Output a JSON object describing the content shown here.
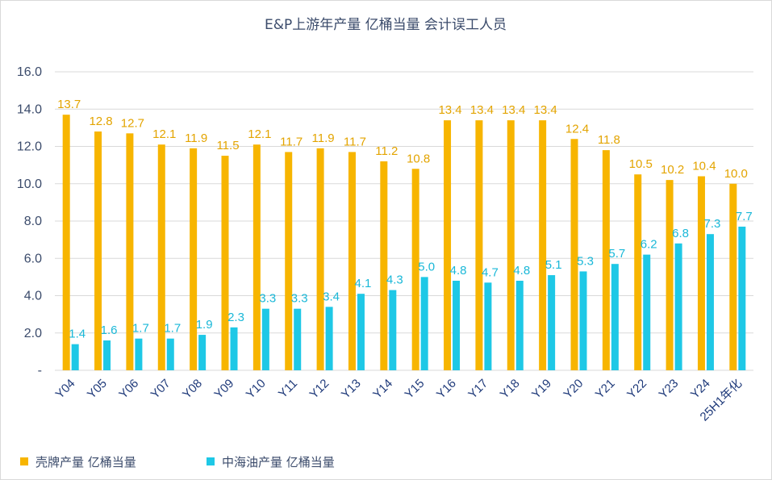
{
  "chart_data": {
    "type": "bar",
    "title": "E&P上游年产量 亿桶当量 会计误工人员",
    "categories": [
      "Y04",
      "Y05",
      "Y06",
      "Y07",
      "Y08",
      "Y09",
      "Y10",
      "Y11",
      "Y12",
      "Y13",
      "Y14",
      "Y15",
      "Y16",
      "Y17",
      "Y18",
      "Y19",
      "Y20",
      "Y21",
      "Y22",
      "Y23",
      "Y24",
      "25H1年化"
    ],
    "series": [
      {
        "name": "壳牌产量 亿桶当量",
        "color": "#f7b500",
        "label_color": "#e3a400",
        "values": [
          13.7,
          12.8,
          12.7,
          12.1,
          11.9,
          11.5,
          12.1,
          11.7,
          11.9,
          11.7,
          11.2,
          10.8,
          13.4,
          13.4,
          13.4,
          13.4,
          12.4,
          11.8,
          10.5,
          10.2,
          10.4,
          10.0
        ]
      },
      {
        "name": "中海油产量 亿桶当量",
        "color": "#1ec8e6",
        "label_color": "#1ab8d8",
        "values": [
          1.4,
          1.6,
          1.7,
          1.7,
          1.9,
          2.3,
          3.3,
          3.3,
          3.4,
          4.1,
          4.3,
          5.0,
          4.8,
          4.7,
          4.8,
          5.1,
          5.3,
          5.7,
          6.2,
          6.8,
          7.3,
          7.7
        ]
      }
    ],
    "ylim": [
      0,
      16
    ],
    "yticks": [
      0,
      2,
      4,
      6,
      8,
      10,
      12,
      14,
      16
    ],
    "ytick_labels": [
      "-",
      "2.0",
      "4.0",
      "6.0",
      "8.0",
      "10.0",
      "12.0",
      "14.0",
      "16.0"
    ],
    "grid": true,
    "legend_position": "bottom-left"
  }
}
